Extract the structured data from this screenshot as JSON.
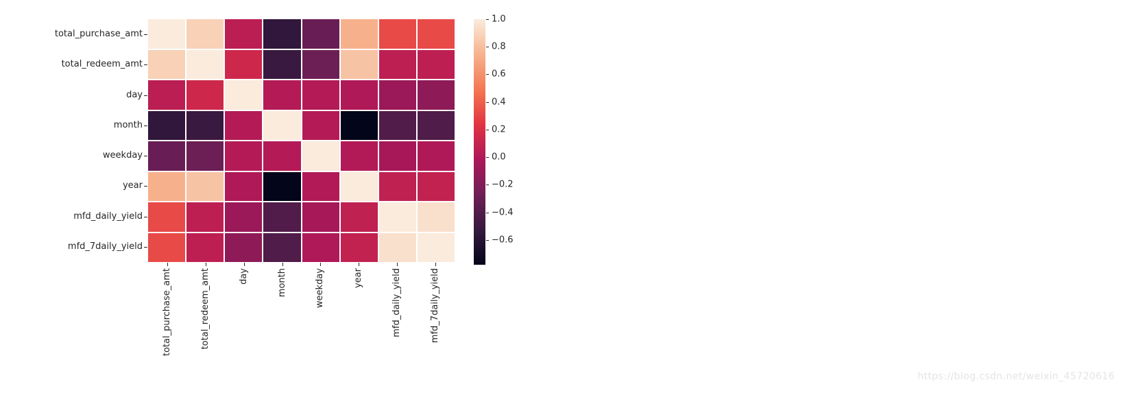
{
  "watermark": "https://blog.csdn.net/weixin_45720616",
  "chart_data": {
    "type": "heatmap",
    "title": "",
    "xlabel": "",
    "ylabel": "",
    "variables": [
      "total_purchase_amt",
      "total_redeem_amt",
      "day",
      "month",
      "weekday",
      "year",
      "mfd_daily_yield",
      "mfd_7daily_yield"
    ],
    "matrix": [
      [
        1.0,
        0.88,
        0.05,
        -0.55,
        -0.3,
        0.74,
        0.32,
        0.32
      ],
      [
        0.88,
        1.0,
        0.14,
        -0.51,
        -0.28,
        0.82,
        0.06,
        0.06
      ],
      [
        0.05,
        0.14,
        1.0,
        0.02,
        0.02,
        0.0,
        -0.09,
        -0.14
      ],
      [
        -0.55,
        -0.51,
        0.02,
        1.0,
        0.02,
        -0.78,
        -0.4,
        -0.41
      ],
      [
        -0.3,
        -0.28,
        0.02,
        0.02,
        1.0,
        0.01,
        -0.04,
        0.0
      ],
      [
        0.74,
        0.82,
        0.0,
        -0.78,
        0.01,
        1.0,
        0.07,
        0.08
      ],
      [
        0.32,
        0.06,
        -0.09,
        -0.4,
        -0.04,
        0.07,
        1.0,
        0.95
      ],
      [
        0.32,
        0.06,
        -0.14,
        -0.41,
        0.0,
        0.08,
        0.95,
        1.0
      ]
    ],
    "vmin": -0.78,
    "vmax": 1.0,
    "grid_on": false,
    "cell_gap_color": "#ffffff",
    "legend_position": "right",
    "colorbar_ticks": [
      {
        "value": 1.0,
        "label": "1.0"
      },
      {
        "value": 0.8,
        "label": "0.8"
      },
      {
        "value": 0.6,
        "label": "0.6"
      },
      {
        "value": 0.4,
        "label": "0.4"
      },
      {
        "value": 0.2,
        "label": "0.2"
      },
      {
        "value": 0.0,
        "label": "0.0"
      },
      {
        "value": -0.2,
        "label": "−0.2"
      },
      {
        "value": -0.4,
        "label": "−0.4"
      },
      {
        "value": -0.6,
        "label": "−0.6"
      }
    ],
    "colormap": {
      "name": "rocket",
      "stops": [
        {
          "t": 0.0,
          "color": "#03051A"
        },
        {
          "t": 0.14,
          "color": "#35193E"
        },
        {
          "t": 0.29,
          "color": "#701F57"
        },
        {
          "t": 0.43,
          "color": "#AD1759"
        },
        {
          "t": 0.57,
          "color": "#E13342"
        },
        {
          "t": 0.71,
          "color": "#F37651"
        },
        {
          "t": 0.86,
          "color": "#F6B48F"
        },
        {
          "t": 1.0,
          "color": "#FAEBDD"
        }
      ]
    }
  }
}
